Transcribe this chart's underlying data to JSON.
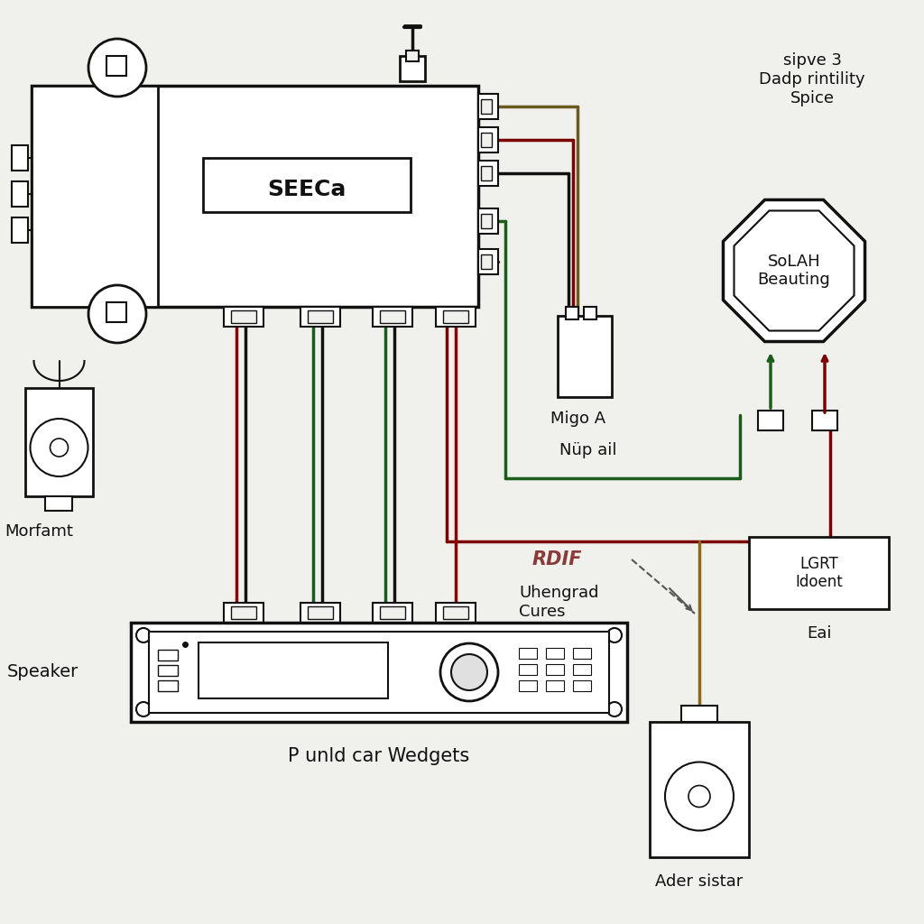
{
  "bg_color": "#f0f0ec",
  "line_color": "#111111",
  "wire_colors": {
    "olive": "#6b5a1e",
    "darkred": "#7a0000",
    "black": "#111111",
    "green": "#1a5c1a",
    "red": "#8B0000"
  },
  "labels": {
    "seeca": "SEECa",
    "morfamt": "Morfamt",
    "speaker": "Speaker",
    "head_unit": "P unld car Wedgets",
    "solah": "SoLAH\nBeauting",
    "sipve": "sipve 3\nDadp rintility\nSpice",
    "migo": "Migo A",
    "nup": "Nüp ail",
    "rdif": "RDIF",
    "uhengrad": "Uhengrad\nCures",
    "lgrt": "LGRT\nIdoent",
    "eai": "Eai",
    "ader": "Ader sistar"
  }
}
